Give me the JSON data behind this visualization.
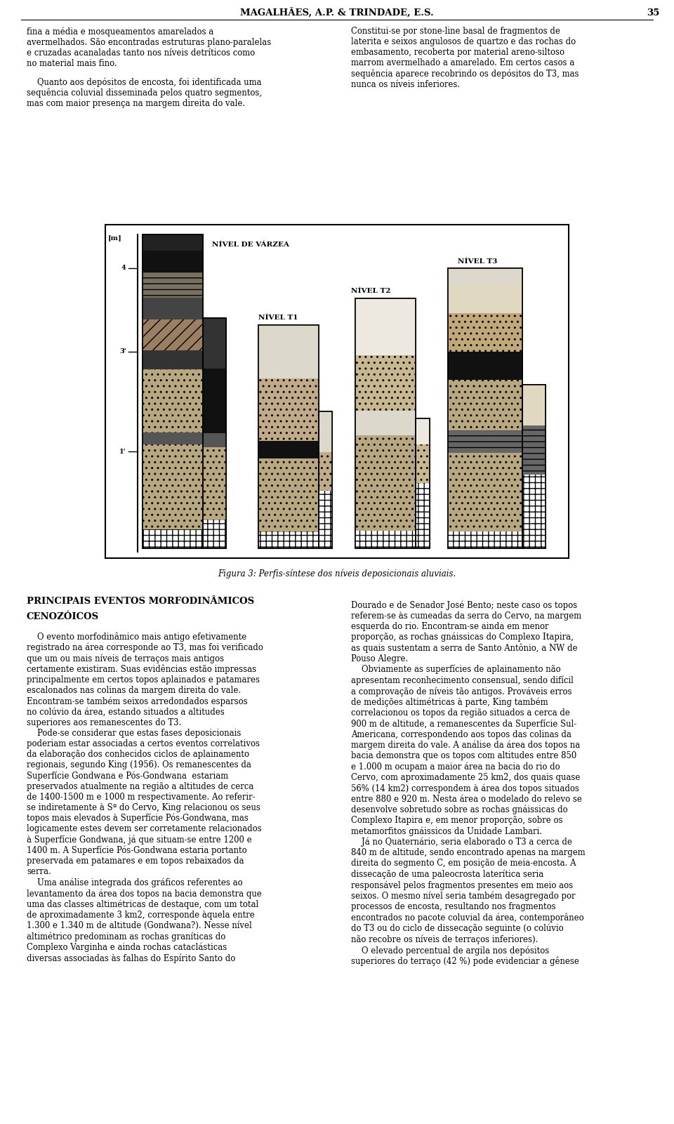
{
  "bg_color": "#ffffff",
  "header_text": "MAGALHÃES, A.P. & TRINDADE, E.S.",
  "header_page": "35",
  "left_col_para1": "fina a média e mosqueamentos amarelados a\navermelhados. São encontradas estruturas plano-paralelas\ne cruzadas acanaladas tanto nos níveis detríticos como\nno material mais fino.",
  "left_col_para2": "    Quanto aos depósitos de encosta, foi identificada uma\nsequência coluvial disseminada pelos quatro segmentos,\nmas com maior presença na margem direita do vale.",
  "right_col_para1": "Constitui-se por stone-line basal de fragmentos de\nlaterita e seixos angulosos de quartzo e das rochas do\nembasamento, recoberta por material areno-siltoso\nmarrom avermelhado a amarelado. Em certos casos a\nsequência aparece recobrindo os depósitos do T3, mas\nnunca os níveis inferiores.",
  "figure_caption": "Figura 3: Perfis-síntese dos níveis deposicionais aluviais.",
  "section_title1": "PRINCIPAIS EVENTOS MORFODINÂMICOS",
  "section_title2": "CENOZÓICOS",
  "left_body": "    O evento morfodinâmico mais antigo efetivamente\nregistrado na área corresponde ao T3, mas foi verificado\nque um ou mais níveis de terraços mais antigos\ncertamente existiram. Suas evidências estão impressas\nprincipalmente em certos topos aplainados e patamares\nescalonados nas colinas da margem direita do vale.\nEncontram-se também seixos arredondados esparsos\nno colúvio da área, estando situados a altitudes\nsuperiores aos remanescentes do T3.\n    Pode-se considerar que estas fases deposicionais\npoderiam estar associadas a certos eventos correlativos\nda elaboração dos conhecidos ciclos de aplainamento\nregionais, segundo King (1956). Os remanescentes da\nSuperfície Gondwana e Pós-Gondwana  estariam\npreservados atualmente na região a altitudes de cerca\nde 1400-1500 m e 1000 m respectivamente. Ao referir-\nse indiretamente à Sª do Cervo, King relacionou os seus\ntopos mais elevados à Superfície Pós-Gondwana, mas\nlogicamente estes devem ser corretamente relacionados\nà Superfície Gondwana, já que situam-se entre 1200 e\n1400 m. A Superfície Pós-Gondwana estaria portanto\npreservada em patamares e em topos rebaixados da\nserra.\n    Uma análise integrada dos gráficos referentes ao\nlevantamento da área dos topos na bacia demonstra que\numa das classes altimétricas de destaque, com um total\nde aproximadamente 3 km2, corresponde àquela entre\n1.300 e 1.340 m de altitude (Gondwana?). Nesse nível\naltimétrico predominam as rochas graníticas do\nComplexo Varginha e ainda rochas cataclásticas\ndiversas associadas às falhas do Espírito Santo do",
  "right_body": "Dourado e de Senador José Bento; neste caso os topos\nreferem-se às cumeadas da serra do Cervo, na margem\nesquerda do rio. Encontram-se ainda em menor\nproporção, as rochas gnáissicas do Complexo Itapira,\nas quais sustentam a serra de Santo Antônio, a NW de\nPouso Alegre.\n    Obviamente as superfícies de aplainamento não\napresentam reconhecimento consensual, sendo difícil\na comprovação de níveis tão antigos. Prováveis erros\nde medições altimétricas à parte, King também\ncorrelacionou os topos da região situados a cerca de\n900 m de altitude, a remanescentes da Superfície Sul-\nAmericana, correspondendo aos topos das colinas da\nmargem direita do vale. A análise da área dos topos na\nbacia demonstra que os topos com altitudes entre 850\ne 1.000 m ocupam a maior área na bacia do rio do\nCervo, com aproximadamente 25 km2, dos quais quase\n56% (14 km2) correspondem à área dos topos situados\nentre 880 e 920 m. Nesta área o modelado do relevo se\ndesenvolve sobretudo sobre as rochas gnáissicas do\nComplexo Itapira e, em menor proporção, sobre os\nmetamorfitos gnáissicos da Unidade Lambari.\n    Já no Quaternário, seria elaborado o T3 a cerca de\n840 m de altitude, sendo encontrado apenas na margem\ndireita do segmento C, em posição de meia-encosta. A\ndissecação de uma paleocrosta laterítica seria\nresponsável pelos fragmentos presentes em meio aos\nseixos. O mesmo nível seria também desagregado por\nprocessos de encosta, resultando nos fragmentos\nencontrados no pacote coluvial da área, contemporâneo\ndo T3 ou do ciclo de dissecação seguinte (o colúvio\nnão recobre os níveis de terraços inferiores).\n    O elevado percentual de argila nos depósitos\nsuperiores do terraço (42 %) pode evidenciar a gênese"
}
